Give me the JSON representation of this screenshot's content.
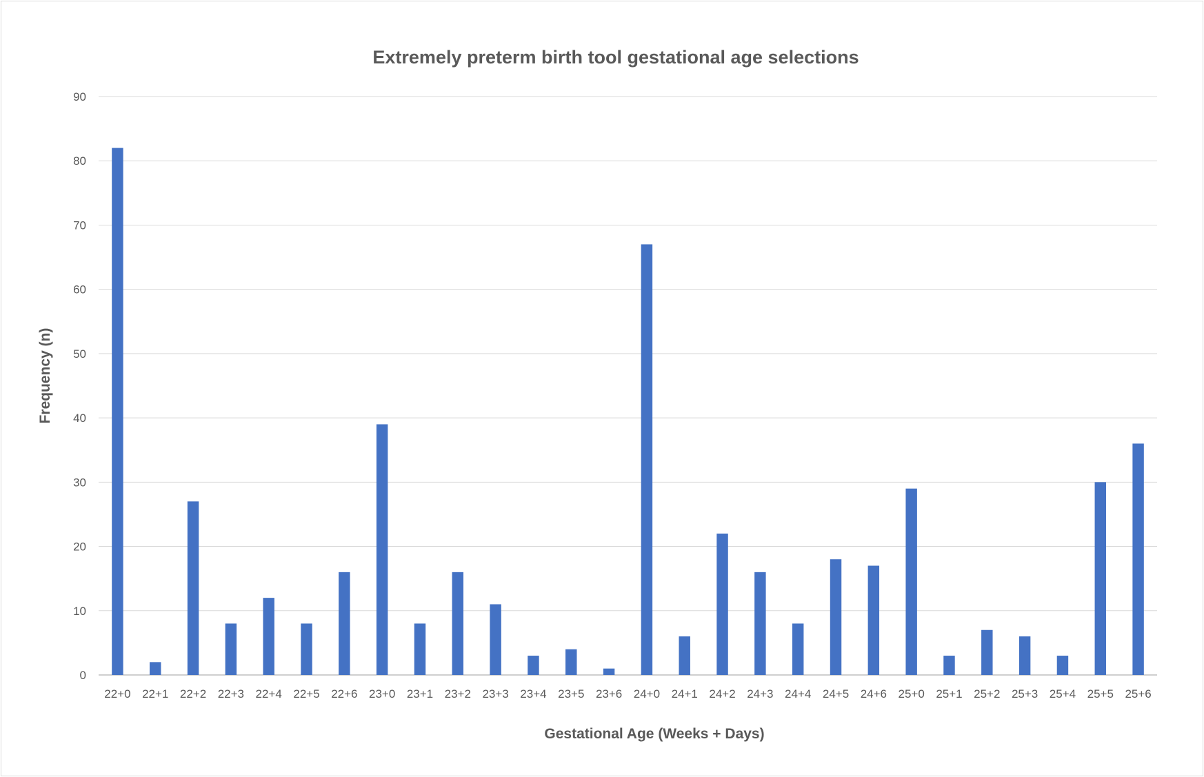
{
  "chart_data": {
    "type": "bar",
    "title": "Extremely preterm birth tool gestational age selections",
    "xlabel": "Gestational Age (Weeks + Days)",
    "ylabel": "Frequency (n)",
    "ylim": [
      0,
      90
    ],
    "yticks": [
      0,
      10,
      20,
      30,
      40,
      50,
      60,
      70,
      80,
      90
    ],
    "grid": true,
    "legend": "none",
    "bar_color": "#4472C4",
    "categories": [
      "22+0",
      "22+1",
      "22+2",
      "22+3",
      "22+4",
      "22+5",
      "22+6",
      "23+0",
      "23+1",
      "23+2",
      "23+3",
      "23+4",
      "23+5",
      "23+6",
      "24+0",
      "24+1",
      "24+2",
      "24+3",
      "24+4",
      "24+5",
      "24+6",
      "25+0",
      "25+1",
      "25+2",
      "25+3",
      "25+4",
      "25+5",
      "25+6"
    ],
    "values": [
      82,
      2,
      27,
      8,
      12,
      8,
      16,
      39,
      8,
      16,
      11,
      3,
      4,
      1,
      67,
      6,
      22,
      16,
      8,
      18,
      17,
      29,
      3,
      7,
      6,
      3,
      30,
      36
    ]
  }
}
